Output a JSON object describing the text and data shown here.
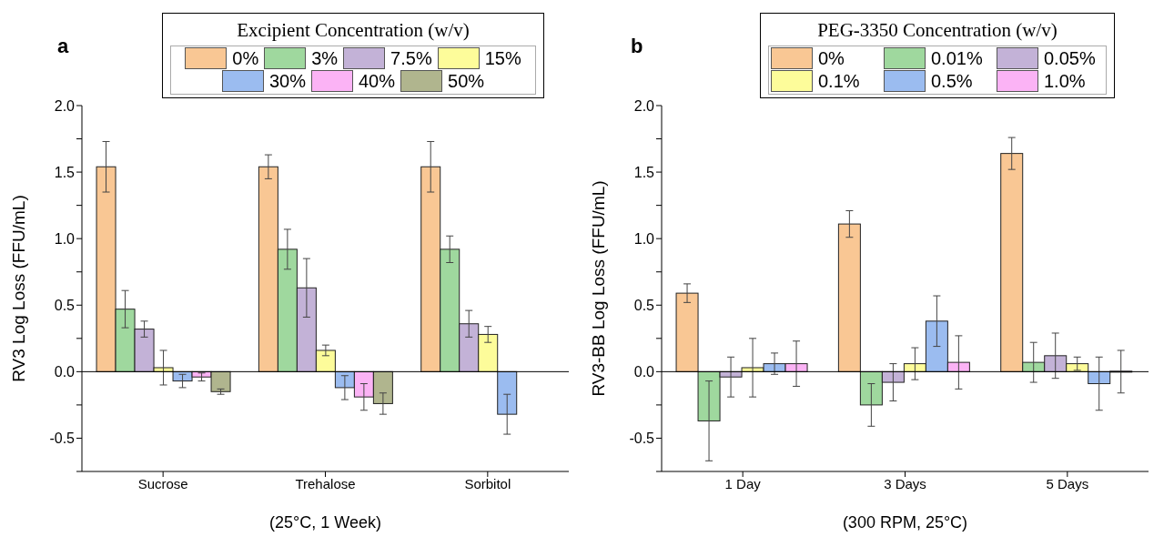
{
  "chart_data": [
    {
      "type": "bar",
      "title": "a",
      "legend_title": "Excipient Concentration (w/v)",
      "legend": "top",
      "xlabel": "(25°C, 1 Week)",
      "ylabel": "RV3 Log Loss (FFU/mL)",
      "categories": [
        "Sucrose",
        "Trehalose",
        "Sorbitol"
      ],
      "ylim": [
        -0.75,
        2.0
      ],
      "yticks": [
        {
          "value": -0.75,
          "label": null
        },
        -0.5,
        {
          "value": -0.25,
          "label": null
        },
        {
          "value": 0,
          "label": "0.0"
        },
        {
          "value": 0.25,
          "label": null
        },
        0.5,
        {
          "value": 0.75,
          "label": null
        },
        {
          "value": 1,
          "label": "1.0"
        },
        {
          "value": 1.25,
          "label": null
        },
        1.5,
        {
          "value": 1.75,
          "label": null
        },
        {
          "value": 2,
          "label": "2.0"
        }
      ],
      "ref_lines": [
        {
          "axis": "y",
          "value": 0,
          "color": "#000000"
        }
      ],
      "series": [
        {
          "name": "0%",
          "color": "#f9c794",
          "values": [
            1.54,
            1.54,
            1.54
          ],
          "errors": [
            0.19,
            0.09,
            0.19
          ]
        },
        {
          "name": "3%",
          "color": "#9fd89e",
          "values": [
            0.47,
            0.92,
            0.92
          ],
          "errors": [
            0.14,
            0.15,
            0.1
          ]
        },
        {
          "name": "7.5%",
          "color": "#c3b2d7",
          "values": [
            0.32,
            0.63,
            0.36
          ],
          "errors": [
            0.06,
            0.22,
            0.1
          ]
        },
        {
          "name": "15%",
          "color": "#fdfc9a",
          "values": [
            0.03,
            0.16,
            0.28
          ],
          "errors": [
            0.13,
            0.04,
            0.06
          ]
        },
        {
          "name": "30%",
          "color": "#9bbcf0",
          "values": [
            -0.07,
            -0.12,
            -0.32
          ],
          "errors": [
            0.05,
            0.09,
            0.15
          ]
        },
        {
          "name": "40%",
          "color": "#fbb3f5",
          "values": [
            -0.04,
            -0.19,
            null
          ],
          "errors": [
            0.03,
            0.1,
            null
          ]
        },
        {
          "name": "50%",
          "color": "#b0b58e",
          "values": [
            -0.15,
            -0.24,
            null
          ],
          "errors": [
            0.02,
            0.08,
            null
          ]
        }
      ]
    },
    {
      "type": "bar",
      "title": "b",
      "legend_title": "PEG-3350 Concentration (w/v)",
      "legend": "top",
      "xlabel": "(300 RPM, 25°C)",
      "ylabel": "RV3-BB Log Loss (FFU/mL)",
      "categories": [
        "1 Day",
        "3 Days",
        "5 Days"
      ],
      "ylim": [
        -0.75,
        2.0
      ],
      "yticks": [
        {
          "value": -0.75,
          "label": null
        },
        -0.5,
        {
          "value": -0.25,
          "label": null
        },
        {
          "value": 0,
          "label": "0.0"
        },
        {
          "value": 0.25,
          "label": null
        },
        0.5,
        {
          "value": 0.75,
          "label": null
        },
        {
          "value": 1,
          "label": "1.0"
        },
        {
          "value": 1.25,
          "label": null
        },
        1.5,
        {
          "value": 1.75,
          "label": null
        },
        {
          "value": 2,
          "label": "2.0"
        }
      ],
      "ref_lines": [
        {
          "axis": "y",
          "value": 0,
          "color": "#000000"
        }
      ],
      "series": [
        {
          "name": "0%",
          "color": "#f9c794",
          "values": [
            0.59,
            1.11,
            1.64
          ],
          "errors": [
            0.07,
            0.1,
            0.12
          ]
        },
        {
          "name": "0.01%",
          "color": "#9fd89e",
          "values": [
            -0.37,
            -0.25,
            0.07
          ],
          "errors": [
            0.3,
            0.16,
            0.15
          ]
        },
        {
          "name": "0.05%",
          "color": "#c3b2d7",
          "values": [
            -0.04,
            -0.08,
            0.12
          ],
          "errors": [
            0.15,
            0.14,
            0.17
          ]
        },
        {
          "name": "0.1%",
          "color": "#fdfc9a",
          "values": [
            0.03,
            0.06,
            0.06
          ],
          "errors": [
            0.22,
            0.12,
            0.05
          ]
        },
        {
          "name": "0.5%",
          "color": "#9bbcf0",
          "values": [
            0.06,
            0.38,
            -0.09
          ],
          "errors": [
            0.08,
            0.19,
            0.2
          ]
        },
        {
          "name": "1.0%",
          "color": "#fbb3f5",
          "values": [
            0.06,
            0.07,
            0
          ],
          "errors": [
            0.17,
            0.2,
            0.16
          ]
        }
      ]
    }
  ]
}
